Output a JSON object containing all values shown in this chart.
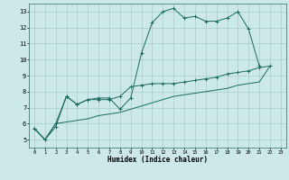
{
  "title": "",
  "xlabel": "Humidex (Indice chaleur)",
  "bg_color": "#cce8e8",
  "grid_color": "#aacccc",
  "line_color": "#1a6b60",
  "xlim": [
    -0.5,
    23.5
  ],
  "ylim": [
    4.5,
    13.5
  ],
  "xticks": [
    0,
    1,
    2,
    3,
    4,
    5,
    6,
    7,
    8,
    9,
    10,
    11,
    12,
    13,
    14,
    15,
    16,
    17,
    18,
    19,
    20,
    21,
    22,
    23
  ],
  "yticks": [
    5,
    6,
    7,
    8,
    9,
    10,
    11,
    12,
    13
  ],
  "line1_y": [
    5.7,
    5.0,
    5.8,
    7.7,
    7.2,
    7.5,
    7.6,
    7.6,
    6.9,
    7.6,
    10.4,
    12.3,
    13.0,
    13.2,
    12.6,
    12.7,
    12.4,
    12.4,
    12.6,
    13.0,
    11.9,
    9.6,
    null,
    null
  ],
  "line2_y": [
    5.7,
    5.0,
    6.0,
    7.7,
    7.2,
    7.5,
    7.5,
    7.5,
    7.7,
    8.3,
    8.4,
    8.5,
    8.5,
    8.5,
    8.6,
    8.7,
    8.8,
    8.9,
    9.1,
    9.2,
    9.3,
    9.5,
    9.6,
    null
  ],
  "line3_y": [
    5.7,
    5.0,
    6.0,
    6.1,
    6.2,
    6.3,
    6.5,
    6.6,
    6.7,
    6.9,
    7.1,
    7.3,
    7.5,
    7.7,
    7.8,
    7.9,
    8.0,
    8.1,
    8.2,
    8.4,
    8.5,
    8.6,
    9.6,
    null
  ]
}
